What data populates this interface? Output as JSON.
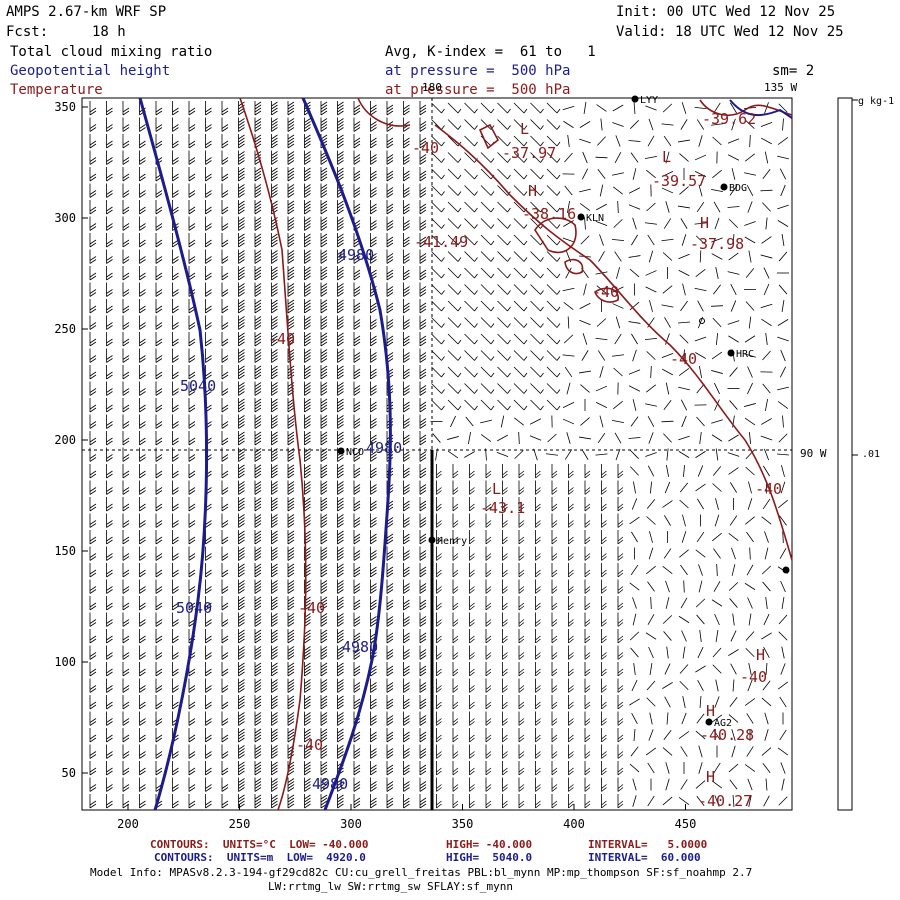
{
  "header": {
    "model": "AMPS 2.67-km WRF SP",
    "init": "Init: 00 UTC Wed 12 Nov 25",
    "fcst_label": "Fcst:",
    "fcst_value": "18 h",
    "valid": "Valid: 18 UTC Wed 12 Nov 25"
  },
  "fields": {
    "field1": "Total cloud mixing ratio",
    "field2": "Geopotential height",
    "field3": "Temperature",
    "avg": "Avg, K-index =  61 to   1",
    "pressure1": "at pressure =  500 hPa",
    "pressure2": "at pressure =  500 hPa",
    "smoothing": "sm= 2"
  },
  "map": {
    "lon_label_top": "135 W",
    "lon_label_right": "90 W",
    "lon_label_180": "180",
    "x_ticks": [
      "200",
      "250",
      "300",
      "350",
      "400",
      "450"
    ],
    "y_ticks": [
      "50",
      "100",
      "150",
      "200",
      "250",
      "300",
      "350"
    ],
    "stations": [
      {
        "name": "LYY"
      },
      {
        "name": "BDG"
      },
      {
        "name": "KLN"
      },
      {
        "name": "HRC"
      },
      {
        "name": "NCO"
      },
      {
        "name": "Henry"
      },
      {
        "name": "AG2"
      },
      {
        "name": ""
      }
    ],
    "temp_labels": [
      "-40",
      "-40",
      "-37.97",
      "-39.57",
      "-38.16",
      "-41.49",
      "-37.98",
      "-40",
      "-40",
      "-40",
      "-40",
      "-40",
      "-43.1",
      "-40",
      "-40",
      "-40.28",
      "-40.27",
      "-39.62"
    ],
    "pressure_centers": [
      "L",
      "L",
      "H",
      "H",
      "L",
      "H",
      "H",
      "H",
      "L",
      "L"
    ],
    "height_labels": [
      "4980",
      "5040",
      "4980",
      "5040",
      "4980",
      "4980"
    ]
  },
  "colorbar": {
    "units": "g kg-1",
    "mid_value": ".01"
  },
  "footer": {
    "temp_contours": "CONTOURS:  UNITS=°C  LOW= -40.000",
    "temp_high": "HIGH= -40.000",
    "temp_interval": "INTERVAL=   5.0000",
    "hgt_contours": "CONTOURS:  UNITS=m  LOW=  4920.0",
    "hgt_high": "HIGH=  5040.0",
    "hgt_interval": "INTERVAL=  60.000",
    "model_info_1": "Model Info: MPASv8.2.3-194-gf29cd82c CU:cu_grell_freitas PBL:bl_mynn MP:mp_thompson SF:sf_noahmp 2.7",
    "model_info_2": "LW:rrtmg_lw SW:rrtmg_sw SFLAY:sf_mynn"
  },
  "colors": {
    "temperature": "#8b1a1a",
    "height": "#1c1c8c",
    "barb": "#000000"
  }
}
